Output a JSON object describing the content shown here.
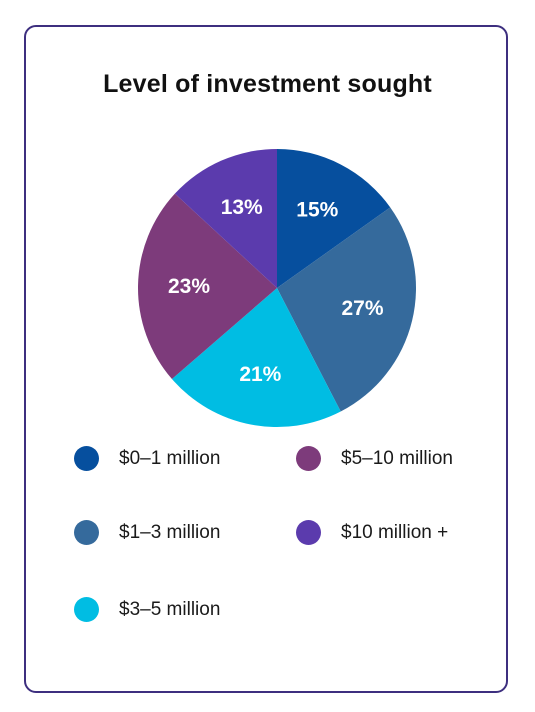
{
  "chart_data": {
    "type": "pie",
    "title": "Level of investment sought",
    "categories": [
      "$0–1 million",
      "$1–3 million",
      "$3–5 million",
      "$5–10 million",
      "$10 million +"
    ],
    "values": [
      15,
      27,
      21,
      23,
      13
    ],
    "value_labels": [
      "15%",
      "27%",
      "21%",
      "23%",
      "13%"
    ],
    "colors": [
      "#064f9e",
      "#356a9c",
      "#00bde3",
      "#7d3b7b",
      "#5b3bad"
    ],
    "legend_placement": "bottom",
    "start": "top, clockwise"
  }
}
